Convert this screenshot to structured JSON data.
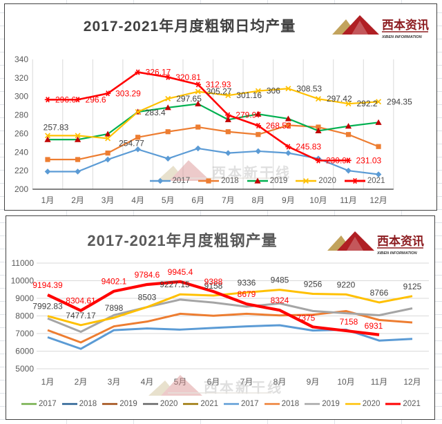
{
  "brand": {
    "logo_text": "西本资讯",
    "logo_subtext": "XIBEN INFORMATION",
    "logo_red": "#b01f24",
    "logo_gold": "#c2a35c"
  },
  "watermark": {
    "text": "西本新干线"
  },
  "chart_data": [
    {
      "type": "line",
      "title": "2017-2021年月度粗钢日均产量",
      "categories": [
        "1月",
        "2月",
        "3月",
        "4月",
        "5月",
        "6月",
        "7月",
        "8月",
        "9月",
        "10月",
        "11月",
        "12月"
      ],
      "y_axis": {
        "min": 200,
        "max": 340,
        "step": 20
      },
      "grid": "vertical",
      "legend_position": "bottom-inside",
      "series": [
        {
          "name": "2017",
          "color": "#5B9BD5",
          "marker": "diamond",
          "marker_color": "#5B9BD5",
          "values": [
            219,
            219,
            232,
            243,
            233,
            244,
            239,
            241,
            239,
            233,
            220,
            216
          ]
        },
        {
          "name": "2018",
          "color": "#ED7D31",
          "marker": "square",
          "marker_color": "#ED7D31",
          "values": [
            232,
            232,
            239,
            256,
            262,
            267,
            262,
            259,
            269,
            267,
            259,
            246
          ]
        },
        {
          "name": "2019",
          "color": "#00B050",
          "marker": "triangle",
          "marker_color": "#C00000",
          "values": [
            253.5,
            253.5,
            259.5,
            283.4,
            288,
            292,
            275,
            281,
            276,
            263,
            268,
            272
          ],
          "labels": {
            "3": "283.4"
          },
          "label_color": "#404040",
          "label_default": [
            10,
            5,
            "start"
          ]
        },
        {
          "name": "2020",
          "color": "#FFC000",
          "marker": "x",
          "marker_color": "#FFC000",
          "values": [
            257.83,
            257.83,
            254.77,
            283.43,
            297.65,
            305.27,
            301.16,
            306,
            308.53,
            297.42,
            292.2,
            294.35
          ],
          "labels": {
            "0": "257.83",
            "2": "254.77",
            "4": "297.65",
            "5": "305.27",
            "6": "301.16",
            "7": "306",
            "8": "308.53",
            "9": "297.42",
            "10": "292.2",
            "11": "294.35"
          },
          "label_color": "#404040",
          "label_default": [
            12,
            4,
            "start"
          ],
          "label_overrides": {
            "0": [
              12,
              -8,
              "middle"
            ],
            "2": [
              16,
              11,
              "start"
            ]
          }
        },
        {
          "name": "2021",
          "color": "#FF0000",
          "marker": "asterisk",
          "marker_color": "#FF0000",
          "thick": true,
          "values": [
            296.6,
            296.6,
            303.29,
            326.17,
            320.81,
            312.93,
            279.97,
            268.52,
            245.83,
            230.9,
            231.03
          ],
          "labels": {
            "0": "296.6",
            "1": "296.6",
            "2": "303.29",
            "3": "326.17",
            "4": "320.81",
            "5": "312.93",
            "6": "279.97",
            "7": "268.52",
            "8": "245.83",
            "9": "230.9",
            "10": "231.03"
          },
          "label_color": "#FF0000",
          "label_default": [
            11,
            4,
            "start"
          ]
        }
      ]
    },
    {
      "type": "line",
      "title": "2017-2021年月度粗钢产量",
      "categories": [
        "1月",
        "2月",
        "3月",
        "4月",
        "5月",
        "6月",
        "7月",
        "8月",
        "9月",
        "10月",
        "11月",
        "12月"
      ],
      "y_axis": {
        "min": 5000,
        "max": 11000,
        "step": 1000
      },
      "grid": "horizontal",
      "legend_position": "bottom",
      "series": [
        {
          "name": "2017",
          "color": "#70AD47",
          "legend_only": true,
          "values": []
        },
        {
          "name": "2018",
          "color": "#255E91",
          "legend_only": true,
          "values": []
        },
        {
          "name": "2019",
          "color": "#9E480E",
          "legend_only": true,
          "values": []
        },
        {
          "name": "2020",
          "color": "#636363",
          "legend_only": true,
          "values": []
        },
        {
          "name": "2021",
          "color": "#997300",
          "legend_only": true,
          "values": []
        },
        {
          "name": "2017",
          "color": "#5B9BD5",
          "values": [
            6789,
            6132,
            7192,
            7290,
            7223,
            7320,
            7409,
            7471,
            7170,
            7223,
            6600,
            6696
          ]
        },
        {
          "name": "2018",
          "color": "#ED7D31",
          "values": [
            7192,
            6496,
            7409,
            7680,
            8122,
            8010,
            8122,
            8029,
            8070,
            8277,
            7770,
            7626
          ]
        },
        {
          "name": "2019",
          "color": "#A5A5A5",
          "values": [
            7859,
            7098,
            8045,
            8502,
            8928,
            8760,
            8525,
            8711,
            8280,
            8153,
            8040,
            8432
          ]
        },
        {
          "name": "2020",
          "color": "#FFC000",
          "values": [
            7992.83,
            7477.17,
            7898,
            8503,
            9227.15,
            9158,
            9336,
            9485,
            9256,
            9220,
            8766,
            9125
          ],
          "labels": {
            "0": "7992.83",
            "1": "7477.17",
            "2": "7898",
            "3": "8503",
            "4": "9227.15",
            "5": "9158",
            "6": "9336",
            "7": "9485",
            "8": "9256",
            "9": "9220",
            "10": "8766",
            "11": "9125"
          },
          "label_color": "#404040",
          "label_default": [
            0,
            -10,
            "middle"
          ],
          "label_overrides": {
            "4": [
              -8,
              -10,
              "middle"
            ]
          }
        },
        {
          "name": "2021",
          "color": "#FF0000",
          "thick": true,
          "values": [
            9194.39,
            8304.61,
            9402.1,
            9784.6,
            9945.4,
            9388,
            8679,
            8324,
            7375,
            7158,
            6931
          ],
          "labels": {
            "0": "9194.39",
            "1": "8304.61",
            "2": "9402.1",
            "3": "9784.6",
            "4": "9945.4",
            "5": "9388",
            "6": "8679",
            "7": "8324",
            "8": "7375",
            "9": "7158",
            "10": "6931"
          },
          "label_color": "#FF0000",
          "label_default": [
            0,
            -10,
            "middle"
          ],
          "label_overrides": {
            "8": [
              -10,
              -9,
              "middle"
            ],
            "9": [
              4,
              -9,
              "middle"
            ],
            "10": [
              -8,
              -9,
              "middle"
            ]
          }
        }
      ]
    }
  ]
}
